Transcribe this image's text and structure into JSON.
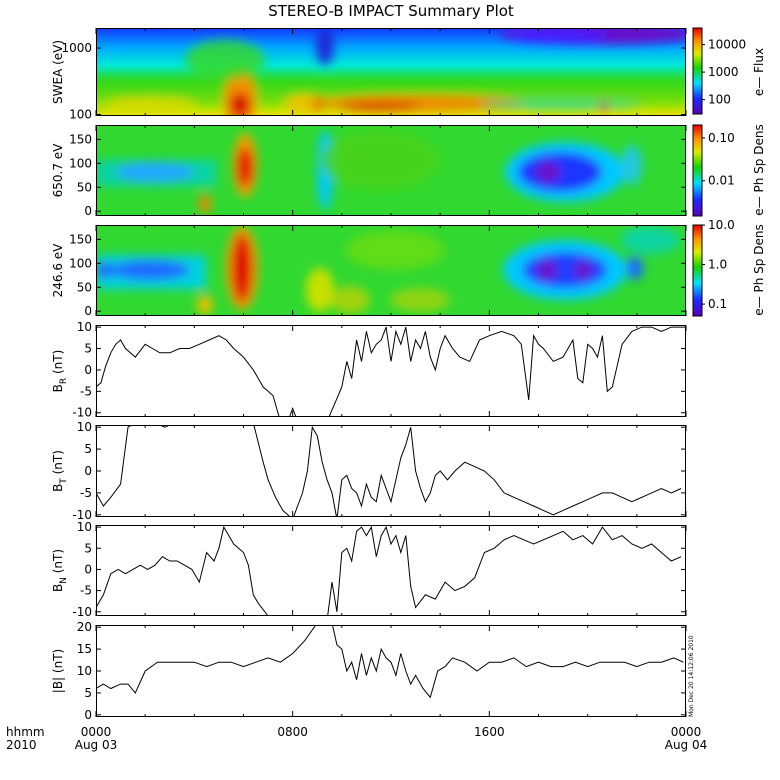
{
  "title": "STEREO-B IMPACT Summary Plot",
  "time_axis": {
    "corner_top": "hhmm",
    "corner_bottom": "2010",
    "ticks": [
      {
        "hour": 0,
        "label": "0000",
        "sub": "Aug 03"
      },
      {
        "hour": 8,
        "label": "0800",
        "sub": ""
      },
      {
        "hour": 16,
        "label": "1600",
        "sub": ""
      },
      {
        "hour": 24,
        "label": "0000",
        "sub": "Aug 04"
      }
    ],
    "range_hours": [
      0,
      24
    ]
  },
  "colors": {
    "frame": "#000000",
    "trace": "#000000",
    "background": "#ffffff"
  },
  "stamp": "Mon Dec 20 14:12:06 2010",
  "chart_data": [
    {
      "type": "heatmap",
      "ylabel": "SWEA (eV)",
      "yscale": "log",
      "ylim": [
        95,
        2000
      ],
      "yticks": [
        {
          "v": 100,
          "label": "100"
        },
        {
          "v": 1000,
          "label": "1000"
        }
      ],
      "colorbar": {
        "label": "e— Flux",
        "scale": "log",
        "range": [
          30,
          40000
        ],
        "ticks": [
          {
            "v": 100,
            "label": "100"
          },
          {
            "v": 1000,
            "label": "1000"
          },
          {
            "v": 10000,
            "label": "10000"
          }
        ]
      }
    },
    {
      "type": "heatmap",
      "ylabel": "650.7 eV",
      "ylim": [
        -10,
        180
      ],
      "yticks": [
        {
          "v": 0,
          "label": "0"
        },
        {
          "v": 50,
          "label": "50"
        },
        {
          "v": 100,
          "label": "100"
        },
        {
          "v": 150,
          "label": "150"
        }
      ],
      "colorbar": {
        "label": "e— Ph Sp Dens",
        "scale": "log",
        "range": [
          0.0015,
          0.2
        ],
        "ticks": [
          {
            "v": 0.01,
            "label": "0.01"
          },
          {
            "v": 0.1,
            "label": "0.10"
          }
        ]
      }
    },
    {
      "type": "heatmap",
      "ylabel": "246.6 eV",
      "ylim": [
        -10,
        180
      ],
      "yticks": [
        {
          "v": 0,
          "label": "0"
        },
        {
          "v": 50,
          "label": "50"
        },
        {
          "v": 100,
          "label": "100"
        },
        {
          "v": 150,
          "label": "150"
        }
      ],
      "colorbar": {
        "label": "e— Ph Sp Dens",
        "scale": "log",
        "range": [
          0.05,
          10
        ],
        "ticks": [
          {
            "v": 0.1,
            "label": "0.1"
          },
          {
            "v": 1,
            "label": "1.0"
          },
          {
            "v": 10,
            "label": "10.0"
          }
        ]
      }
    },
    {
      "type": "line",
      "ylabel": "B",
      "ysub": "R",
      "yunit": "(nT)",
      "ylim": [
        -11,
        10.5
      ],
      "yticks": [
        {
          "v": -10,
          "label": "-10"
        },
        {
          "v": -5,
          "label": "-5"
        },
        {
          "v": 0,
          "label": "0"
        },
        {
          "v": 5,
          "label": "5"
        },
        {
          "v": 10,
          "label": "10"
        }
      ],
      "x": [
        0,
        0.2,
        0.4,
        0.6,
        0.8,
        1,
        1.2,
        1.6,
        2,
        2.3,
        2.6,
        3,
        3.4,
        3.8,
        4.2,
        4.6,
        5,
        5.3,
        5.6,
        6,
        6.4,
        6.8,
        7,
        7.2,
        7.5,
        7.8,
        8,
        8.2,
        8.4,
        9,
        9.4,
        9.7,
        10,
        10.2,
        10.4,
        10.6,
        10.8,
        11,
        11.2,
        11.4,
        11.6,
        11.8,
        12,
        12.2,
        12.4,
        12.6,
        12.8,
        13,
        13.2,
        13.4,
        13.6,
        13.8,
        14,
        14.2,
        14.5,
        14.8,
        15.2,
        15.6,
        16,
        16.5,
        17,
        17.3,
        17.6,
        17.8,
        18,
        18.2,
        18.6,
        19,
        19.4,
        19.6,
        19.8,
        20,
        20.2,
        20.4,
        20.6,
        20.8,
        21,
        21.4,
        21.8,
        22.2,
        22.6,
        23,
        23.4,
        23.8
      ],
      "y": [
        -4,
        -3,
        1,
        4,
        6,
        7,
        5,
        3,
        6,
        5,
        4,
        4,
        5,
        5,
        6,
        7,
        8,
        7,
        5,
        3,
        0,
        -4,
        -5,
        -6,
        -12,
        -12,
        -9,
        -12,
        -12,
        -12,
        -12,
        -8,
        -4,
        2,
        -2,
        7,
        2,
        9,
        4,
        6,
        7,
        10,
        2,
        9,
        6,
        10,
        2,
        7,
        5,
        9,
        3,
        0,
        5,
        8,
        5,
        3,
        2,
        7,
        8,
        9,
        8,
        6,
        -7,
        8,
        6,
        5,
        2,
        3,
        7,
        -2,
        -3,
        6,
        5,
        3,
        8,
        -5,
        -4,
        6,
        9,
        10,
        10,
        9,
        10,
        10
      ]
    },
    {
      "type": "line",
      "ylabel": "B",
      "ysub": "T",
      "yunit": "(nT)",
      "ylim": [
        -10.5,
        10.5
      ],
      "yticks": [
        {
          "v": -10,
          "label": "-10"
        },
        {
          "v": -5,
          "label": "-5"
        },
        {
          "v": 0,
          "label": "0"
        },
        {
          "v": 5,
          "label": "5"
        },
        {
          "v": 10,
          "label": "10"
        }
      ],
      "x": [
        0,
        0.3,
        0.6,
        1,
        1.3,
        1.6,
        2,
        2.4,
        2.8,
        3.2,
        3.6,
        4,
        4.4,
        4.8,
        5.2,
        5.6,
        6,
        6.4,
        6.8,
        7,
        7.3,
        7.6,
        8,
        8.2,
        8.4,
        8.6,
        8.8,
        9,
        9.2,
        9.4,
        9.6,
        9.8,
        10,
        10.2,
        10.4,
        10.6,
        10.8,
        11,
        11.2,
        11.4,
        11.6,
        11.8,
        12,
        12.2,
        12.4,
        12.6,
        12.8,
        13,
        13.2,
        13.4,
        13.6,
        13.8,
        14,
        14.3,
        14.6,
        15,
        15.4,
        15.8,
        16.2,
        16.6,
        17,
        17.4,
        17.8,
        18.2,
        18.6,
        19,
        19.4,
        19.8,
        20.2,
        20.6,
        21,
        21.4,
        21.8,
        22.2,
        22.6,
        23,
        23.4,
        23.8
      ],
      "y": [
        -5,
        -8,
        -6,
        -3,
        10,
        11,
        11,
        11,
        10,
        11,
        11,
        11,
        11,
        11,
        11,
        11,
        11,
        11,
        2,
        -2,
        -6,
        -9,
        -11,
        -8,
        -5,
        0,
        10,
        8,
        2,
        -2,
        -5,
        -11,
        -2,
        -1,
        -4,
        -5,
        -8,
        -3,
        -6,
        -7,
        -1,
        -4,
        -7,
        -2,
        3,
        6,
        10,
        0,
        -4,
        -7,
        -5,
        -1,
        0,
        -2,
        0,
        2,
        1,
        0,
        -2,
        -5,
        -6,
        -7,
        -8,
        -9,
        -10,
        -9,
        -8,
        -7,
        -6,
        -5,
        -5,
        -6,
        -7,
        -6,
        -5,
        -4,
        -5,
        -4
      ]
    },
    {
      "type": "line",
      "ylabel": "B",
      "ysub": "N",
      "yunit": "(nT)",
      "ylim": [
        -11,
        10.5
      ],
      "yticks": [
        {
          "v": -10,
          "label": "-10"
        },
        {
          "v": -5,
          "label": "-5"
        },
        {
          "v": 0,
          "label": "0"
        },
        {
          "v": 5,
          "label": "5"
        },
        {
          "v": 10,
          "label": "10"
        }
      ],
      "x": [
        0,
        0.3,
        0.6,
        0.9,
        1.2,
        1.5,
        1.8,
        2.1,
        2.4,
        2.7,
        3,
        3.3,
        3.6,
        3.9,
        4.2,
        4.5,
        4.8,
        5,
        5.2,
        5.4,
        5.6,
        5.8,
        6,
        6.2,
        6.4,
        6.6,
        7,
        8,
        9,
        9.2,
        9.4,
        9.6,
        9.8,
        10,
        10.2,
        10.4,
        10.6,
        10.8,
        11,
        11.2,
        11.4,
        11.6,
        11.8,
        12,
        12.2,
        12.4,
        12.6,
        12.8,
        13,
        13.4,
        13.8,
        14.2,
        14.6,
        15,
        15.4,
        15.8,
        16.2,
        16.6,
        17,
        17.4,
        17.8,
        18.2,
        18.6,
        19,
        19.4,
        19.8,
        20.2,
        20.6,
        21,
        21.4,
        21.8,
        22.2,
        22.6,
        23,
        23.4,
        23.8
      ],
      "y": [
        -9,
        -6,
        -1,
        0,
        -1,
        0,
        1,
        0,
        1,
        3,
        2,
        2,
        1,
        0,
        -3,
        4,
        2,
        5,
        10,
        8,
        6,
        5,
        4,
        1,
        -6,
        -8,
        -11,
        -12,
        -12,
        -12,
        -12,
        -3,
        -10,
        4,
        5,
        2,
        9,
        10,
        8,
        10,
        3,
        8,
        10,
        6,
        8,
        4,
        8,
        -4,
        -9,
        -6,
        -7,
        -3,
        -5,
        -4,
        -2,
        4,
        5,
        7,
        8,
        7,
        6,
        7,
        8,
        9,
        7,
        8,
        6,
        10,
        7,
        8,
        6,
        5,
        6,
        4,
        2,
        3
      ]
    },
    {
      "type": "line",
      "ylabel": "|B|",
      "yunit": "(nT)",
      "ylim": [
        -0.5,
        20.5
      ],
      "yticks": [
        {
          "v": 0,
          "label": "0"
        },
        {
          "v": 5,
          "label": "5"
        },
        {
          "v": 10,
          "label": "10"
        },
        {
          "v": 15,
          "label": "15"
        },
        {
          "v": 20,
          "label": "20"
        }
      ],
      "x": [
        0,
        0.3,
        0.6,
        1,
        1.3,
        1.6,
        2,
        2.5,
        3,
        3.5,
        4,
        4.5,
        5,
        5.5,
        6,
        6.5,
        7,
        7.5,
        8,
        8.5,
        9,
        9.2,
        9.4,
        9.6,
        9.8,
        10,
        10.2,
        10.4,
        10.6,
        10.8,
        11,
        11.2,
        11.4,
        11.6,
        11.8,
        12,
        12.2,
        12.4,
        12.6,
        12.8,
        13,
        13.3,
        13.6,
        13.9,
        14.2,
        14.5,
        15,
        15.5,
        16,
        16.5,
        17,
        17.5,
        18,
        18.5,
        19,
        19.5,
        20,
        20.5,
        21,
        21.5,
        22,
        22.5,
        23,
        23.5,
        23.9
      ],
      "y": [
        6,
        7,
        6,
        7,
        7,
        5,
        10,
        12,
        12,
        12,
        12,
        11,
        12,
        12,
        11,
        12,
        13,
        12,
        14,
        17,
        21,
        22,
        25,
        21,
        16,
        15,
        10,
        12,
        8,
        14,
        9,
        13,
        10,
        15,
        13,
        12,
        9,
        14,
        10,
        7,
        9,
        6,
        4,
        10,
        11,
        13,
        12,
        10,
        12,
        12,
        13,
        11,
        12,
        11,
        11,
        12,
        11,
        12,
        12,
        12,
        11,
        12,
        12,
        13,
        12
      ]
    }
  ]
}
